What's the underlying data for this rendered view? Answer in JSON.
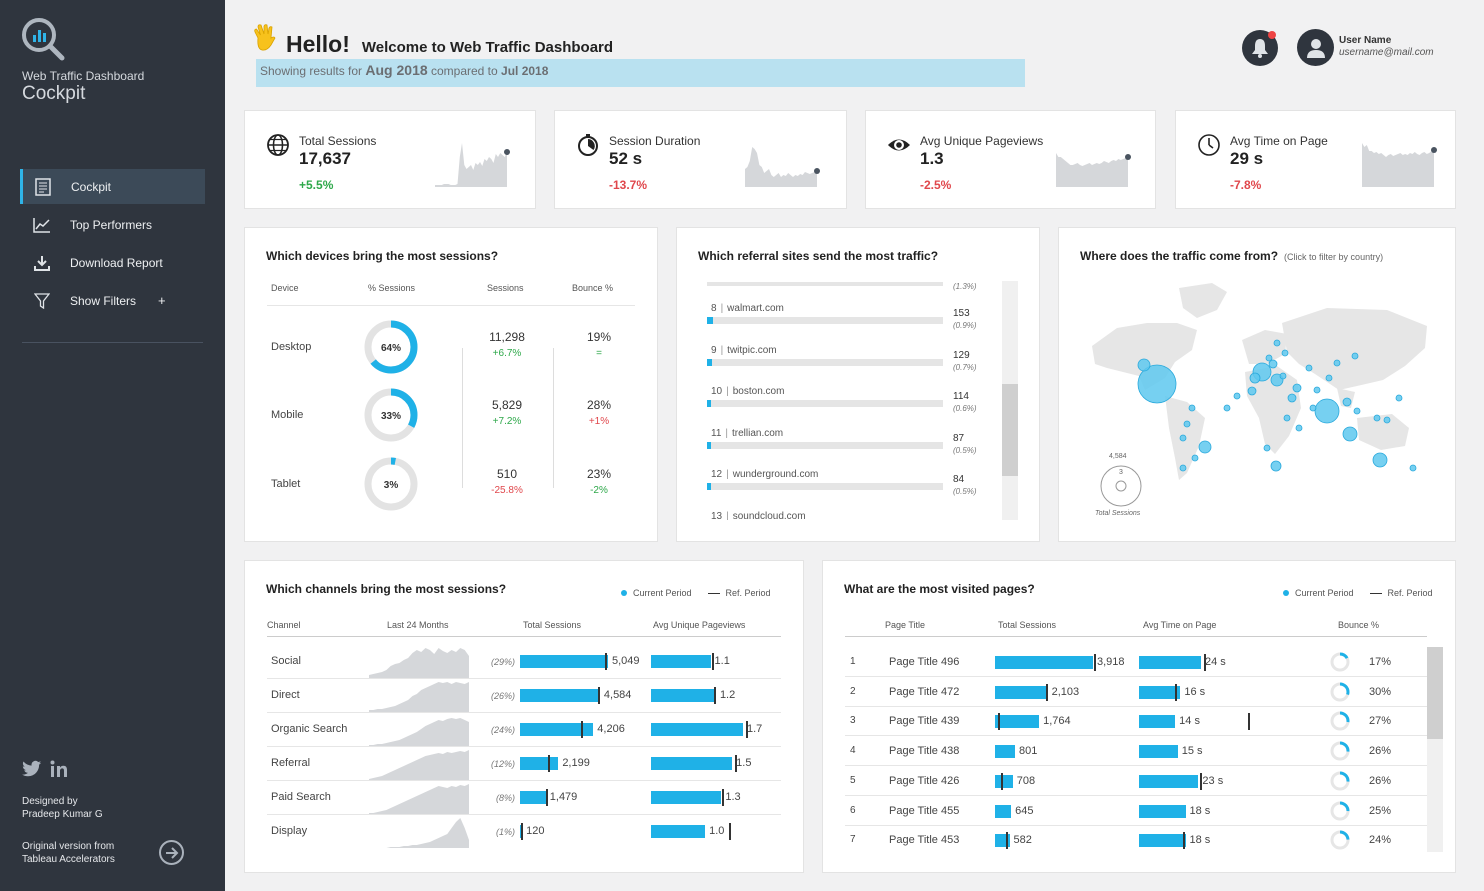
{
  "sidebar": {
    "app_subtitle": "Web Traffic Dashboard",
    "app_title": "Cockpit",
    "items": [
      {
        "label": "Cockpit",
        "icon": "document-icon"
      },
      {
        "label": "Top Performers",
        "icon": "line-chart-icon"
      },
      {
        "label": "Download Report",
        "icon": "download-icon"
      },
      {
        "label": "Show Filters",
        "icon": "filter-icon",
        "suffix": "+"
      }
    ],
    "credit_line1": "Designed by",
    "credit_line2": "Pradeep Kumar G",
    "orig_line1": "Original version from",
    "orig_line2": "Tableau Accelerators"
  },
  "header": {
    "hello": "Hello!",
    "welcome": "Welcome to Web Traffic Dashboard",
    "showing_prefix": "Showing results for",
    "current_period": "Aug 2018",
    "compared_to": "compared to",
    "ref_period": "Jul 2018",
    "user_name": "User Name",
    "user_email": "username@mail.com"
  },
  "kpis": [
    {
      "label": "Total Sessions",
      "value": "17,637",
      "change": "+5.5%",
      "trend": "pos",
      "icon": "globe-icon"
    },
    {
      "label": "Session Duration",
      "value": "52 s",
      "change": "-13.7%",
      "trend": "neg",
      "icon": "stopwatch-icon"
    },
    {
      "label": "Avg Unique Pageviews",
      "value": "1.3",
      "change": "-2.5%",
      "trend": "neg",
      "icon": "eye-icon"
    },
    {
      "label": "Avg Time on Page",
      "value": "29 s",
      "change": "-7.8%",
      "trend": "neg",
      "icon": "clock-icon"
    }
  ],
  "devices": {
    "title": "Which devices bring the most sessions?",
    "headers": [
      "Device",
      "% Sessions",
      "Sessions",
      "Bounce %"
    ],
    "rows": [
      {
        "name": "Desktop",
        "pct": 64,
        "pct_label": "64%",
        "sessions": "11,298",
        "ses_change": "+6.7%",
        "ses_trend": "pos",
        "bounce": "19%",
        "bnc_change": "=",
        "bnc_trend": "pos"
      },
      {
        "name": "Mobile",
        "pct": 33,
        "pct_label": "33%",
        "sessions": "5,829",
        "ses_change": "+7.2%",
        "ses_trend": "pos",
        "bounce": "28%",
        "bnc_change": "+1%",
        "bnc_trend": "neg"
      },
      {
        "name": "Tablet",
        "pct": 3,
        "pct_label": "3%",
        "sessions": "510",
        "ses_change": "-25.8%",
        "ses_trend": "neg",
        "bounce": "23%",
        "bnc_change": "-2%",
        "bnc_trend": "pos"
      }
    ]
  },
  "referral": {
    "title": "Which referral sites send the most traffic?",
    "top_pct": "(1.3%)",
    "rows": [
      {
        "rank": "8",
        "site": "walmart.com",
        "value": "153",
        "pct": "(0.9%)",
        "share": 0.9
      },
      {
        "rank": "9",
        "site": "twitpic.com",
        "value": "129",
        "pct": "(0.7%)",
        "share": 0.7
      },
      {
        "rank": "10",
        "site": "boston.com",
        "value": "114",
        "pct": "(0.6%)",
        "share": 0.6
      },
      {
        "rank": "11",
        "site": "trellian.com",
        "value": "87",
        "pct": "(0.5%)",
        "share": 0.5
      },
      {
        "rank": "12",
        "site": "wunderground.com",
        "value": "84",
        "pct": "(0.5%)",
        "share": 0.5
      },
      {
        "rank": "13",
        "site": "soundcloud.com",
        "value": "",
        "pct": "",
        "share": 0.4
      }
    ]
  },
  "map": {
    "title": "Where does the traffic come from?",
    "subtitle": "(Click to filter by country)",
    "legend_max": "4,584",
    "legend_min": "3",
    "legend_label": "Total Sessions"
  },
  "channels": {
    "title": "Which channels bring the most sessions?",
    "legend_current": "Current Period",
    "legend_ref": "Ref. Period",
    "headers": [
      "Channel",
      "Last 24 Months",
      "Total Sessions",
      "Avg Unique Pageviews"
    ],
    "rows": [
      {
        "name": "Social",
        "pct": "(29%)",
        "sessions": 5049,
        "sessions_label": "5,049",
        "ref": 4900,
        "pv": 1.1,
        "pv_label": "1.1",
        "pv_ref": 1.12
      },
      {
        "name": "Direct",
        "pct": "(26%)",
        "sessions": 4584,
        "sessions_label": "4,584",
        "ref": 4450,
        "pv": 1.2,
        "pv_label": "1.2",
        "pv_ref": 1.16
      },
      {
        "name": "Organic Search",
        "pct": "(24%)",
        "sessions": 4206,
        "sessions_label": "4,206",
        "ref": 3500,
        "pv": 1.7,
        "pv_label": "1.7",
        "pv_ref": 1.75
      },
      {
        "name": "Referral",
        "pct": "(12%)",
        "sessions": 2199,
        "sessions_label": "2,199",
        "ref": 1600,
        "pv": 1.5,
        "pv_label": "1.5",
        "pv_ref": 1.55
      },
      {
        "name": "Paid Search",
        "pct": "(8%)",
        "sessions": 1479,
        "sessions_label": "1,479",
        "ref": 1500,
        "pv": 1.3,
        "pv_label": "1.3",
        "pv_ref": 1.31
      },
      {
        "name": "Display",
        "pct": "(1%)",
        "sessions": 120,
        "sessions_label": "120",
        "ref": 60,
        "pv": 1.0,
        "pv_label": "1.0",
        "pv_ref": 1.45
      }
    ]
  },
  "pages": {
    "title": "What are the most visited pages?",
    "legend_current": "Current Period",
    "legend_ref": "Ref. Period",
    "headers": [
      "Page Title",
      "Total Sessions",
      "Avg Time on Page",
      "Bounce %"
    ],
    "rows": [
      {
        "rank": "1",
        "title": "Page Title 496",
        "sessions": 3918,
        "sessions_label": "3,918",
        "ses_ref": 3950,
        "time": 24,
        "time_label": "24 s",
        "time_ref": 25,
        "bounce": 17,
        "bounce_label": "17%"
      },
      {
        "rank": "2",
        "title": "Page Title 472",
        "sessions": 2103,
        "sessions_label": "2,103",
        "ses_ref": 2050,
        "time": 16,
        "time_label": "16 s",
        "time_ref": 14,
        "bounce": 30,
        "bounce_label": "30%"
      },
      {
        "rank": "3",
        "title": "Page Title 439",
        "sessions": 1764,
        "sessions_label": "1,764",
        "ses_ref": 120,
        "time": 14,
        "time_label": "14 s",
        "time_ref": 42,
        "bounce": 27,
        "bounce_label": "27%"
      },
      {
        "rank": "4",
        "title": "Page Title 438",
        "sessions": 801,
        "sessions_label": "801",
        "ses_ref": 0,
        "time": 15,
        "time_label": "15 s",
        "time_ref": 0,
        "bounce": 26,
        "bounce_label": "26%"
      },
      {
        "rank": "5",
        "title": "Page Title 426",
        "sessions": 708,
        "sessions_label": "708",
        "ses_ref": 230,
        "time": 23,
        "time_label": "23 s",
        "time_ref": 23.5,
        "bounce": 26,
        "bounce_label": "26%"
      },
      {
        "rank": "6",
        "title": "Page Title 455",
        "sessions": 645,
        "sessions_label": "645",
        "ses_ref": 0,
        "time": 18,
        "time_label": "18 s",
        "time_ref": 0,
        "bounce": 25,
        "bounce_label": "25%"
      },
      {
        "rank": "7",
        "title": "Page Title 453",
        "sessions": 582,
        "sessions_label": "582",
        "ses_ref": 420,
        "time": 18,
        "time_label": "18 s",
        "time_ref": 17,
        "bounce": 24,
        "bounce_label": "24%"
      }
    ]
  },
  "colors": {
    "accent": "#1fb1e7",
    "sidebar": "#2f353e",
    "positive": "#2ea84a",
    "negative": "#e0474c"
  }
}
